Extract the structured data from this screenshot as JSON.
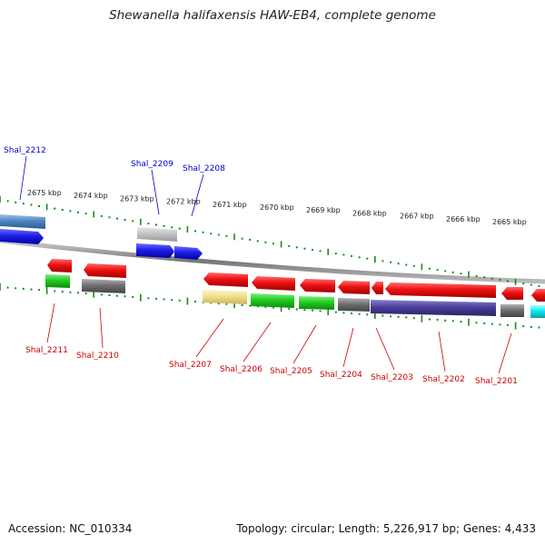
{
  "title": "Shewanella halifaxensis HAW-EB4, complete genome",
  "accession_label": "Accession: NC_010334",
  "topology_label": "Topology: circular; Length: 5,226,917 bp; Genes: 4,433",
  "colors": {
    "tick": "#1a8a1a",
    "backbone": "#888888",
    "top_label": "#0000cc",
    "bottom_label": "#cc0000"
  },
  "kbp_labels": [
    "2675 kbp",
    "2674 kbp",
    "2673 kbp",
    "2672 kbp",
    "2671 kbp",
    "2670 kbp",
    "2669 kbp",
    "2668 kbp",
    "2667 kbp",
    "2666 kbp",
    "2665 kbp"
  ],
  "top_genes": [
    {
      "id": "Shal_2212",
      "color": "#1f1fe6"
    },
    {
      "id": "Shal_2209",
      "color": "#1f1fe6"
    },
    {
      "id": "Shal_2208",
      "color": "#1f1fe6"
    }
  ],
  "bottom_genes": [
    {
      "id": "Shal_2211",
      "color": "#ee1111"
    },
    {
      "id": "Shal_2210",
      "color": "#ee1111"
    },
    {
      "id": "Shal_2207",
      "color": "#ee1111"
    },
    {
      "id": "Shal_2206",
      "color": "#ee1111"
    },
    {
      "id": "Shal_2205",
      "color": "#ee1111"
    },
    {
      "id": "Shal_2204",
      "color": "#ee1111"
    },
    {
      "id": "Shal_2203",
      "color": "#ee1111"
    },
    {
      "id": "Shal_2202",
      "color": "#ee1111"
    },
    {
      "id": "Shal_2201",
      "color": "#ee1111"
    }
  ]
}
